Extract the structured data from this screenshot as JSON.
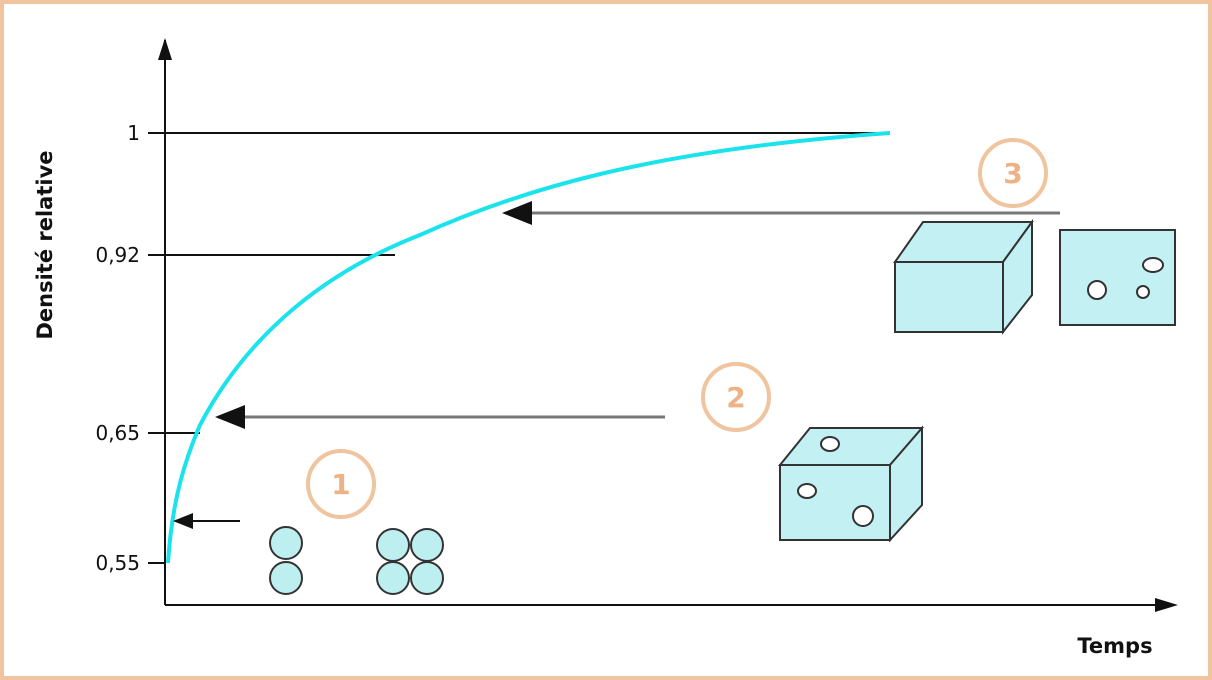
{
  "y_axis": {
    "label": "Densité relative",
    "ticks": [
      "1",
      "0,92",
      "0,65",
      "0,55"
    ]
  },
  "x_axis": {
    "label": "Temps"
  },
  "stages": [
    {
      "label": "1"
    },
    {
      "label": "2"
    },
    {
      "label": "3"
    }
  ]
}
